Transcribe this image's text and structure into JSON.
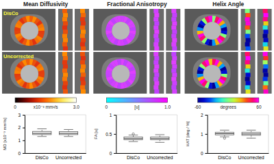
{
  "figure": {
    "columns": [
      {
        "title": "Mean Diffusivity",
        "colorbar": {
          "range": [
            0,
            3
          ],
          "ticks": [
            0,
            {
              "value": 3,
              "label": "3.0"
            }
          ],
          "unit": "x10⁻³ mm²/s"
        }
      },
      {
        "title": "Fractional Anisotropy",
        "colorbar": {
          "range": [
            0,
            1
          ],
          "ticks": [
            0,
            {
              "value": 1,
              "label": "1.0"
            }
          ],
          "unit": "[u]"
        }
      },
      {
        "title": "Helix Angle",
        "colorbar": {
          "range": [
            -60,
            60
          ],
          "ticks": [
            -60,
            60
          ],
          "unit": "degrees"
        }
      }
    ],
    "rows": [
      "DisCo",
      "Uncorrected"
    ]
  },
  "chart_data": [
    {
      "type": "box",
      "categories": [
        "DisCo",
        "Uncorrected"
      ],
      "ylabel": "MD [x10⁻³ mm²/s]",
      "ylim": [
        0,
        3
      ],
      "yticks": [
        0,
        1,
        2,
        3
      ],
      "boxes": [
        {
          "whislo": 1.3,
          "q1": 1.45,
          "med": 1.55,
          "q3": 1.7,
          "whishi": 1.9,
          "fliers": []
        },
        {
          "whislo": 1.3,
          "q1": 1.45,
          "med": 1.55,
          "q3": 1.68,
          "whishi": 1.85,
          "fliers": []
        }
      ]
    },
    {
      "type": "box",
      "categories": [
        "DisCo",
        "Uncorrected"
      ],
      "ylabel": "FA [u]",
      "ylim": [
        0,
        1
      ],
      "yticks": [
        0,
        0.5,
        1
      ],
      "boxes": [
        {
          "whislo": 0.3,
          "q1": 0.35,
          "med": 0.38,
          "q3": 0.42,
          "whishi": 0.47,
          "fliers": [
            0.5
          ]
        },
        {
          "whislo": 0.28,
          "q1": 0.35,
          "med": 0.38,
          "q3": 0.42,
          "whishi": 0.48,
          "fliers": []
        }
      ]
    },
    {
      "type": "box",
      "categories": [
        "DisCo",
        "Uncorrected"
      ],
      "ylabel": "HAT [deg / %]",
      "ylim": [
        0,
        2
      ],
      "yticks": [
        0,
        1,
        2
      ],
      "boxes": [
        {
          "whislo": 0.85,
          "q1": 0.95,
          "med": 1.02,
          "q3": 1.08,
          "whishi": 1.2,
          "fliers": [
            0.78
          ]
        },
        {
          "whislo": 0.78,
          "q1": 0.93,
          "med": 1.0,
          "q3": 1.08,
          "whishi": 1.2,
          "fliers": []
        }
      ]
    }
  ]
}
